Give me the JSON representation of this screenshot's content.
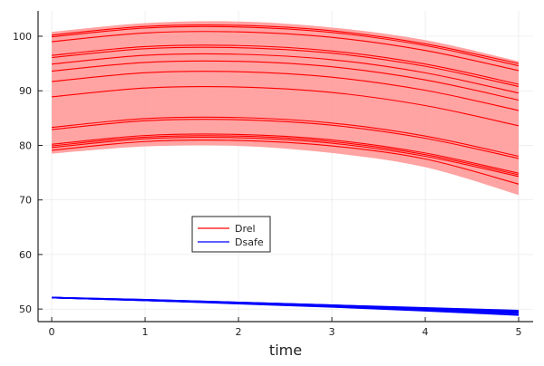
{
  "chart_data": {
    "type": "line",
    "title": "",
    "xlabel": "time",
    "ylabel": "",
    "xlim": [
      -0.146,
      5.155
    ],
    "ylim": [
      47.7,
      104.65
    ],
    "xticks": [
      0,
      1,
      2,
      3,
      4,
      5
    ],
    "yticks": [
      50,
      60,
      70,
      80,
      90,
      100
    ],
    "grid": true,
    "legend_position": "center-left",
    "x": [
      0,
      1,
      2,
      3,
      4,
      5
    ],
    "ribbon": {
      "color": "#ff9999",
      "lower": [
        78.5,
        79.8,
        79.9,
        78.6,
        76.0,
        70.9
      ],
      "upper": [
        100.8,
        102.4,
        102.7,
        101.6,
        99.3,
        95.4
      ]
    },
    "series": [
      {
        "name": "Drel",
        "color": "#ff0000",
        "lines": [
          [
            100.2,
            101.8,
            102.0,
            101.0,
            98.6,
            95.0
          ],
          [
            99.9,
            101.5,
            101.7,
            100.7,
            98.3,
            94.6
          ],
          [
            99.0,
            100.6,
            100.8,
            99.8,
            97.4,
            93.7
          ],
          [
            96.5,
            98.1,
            98.3,
            97.3,
            94.9,
            91.2
          ],
          [
            96.1,
            97.7,
            97.9,
            96.9,
            94.5,
            90.8
          ],
          [
            94.9,
            96.5,
            96.7,
            95.7,
            93.3,
            89.6
          ],
          [
            93.6,
            95.2,
            95.4,
            94.4,
            92.0,
            88.3
          ],
          [
            91.7,
            93.3,
            93.5,
            92.5,
            90.1,
            86.4
          ],
          [
            88.9,
            90.5,
            90.7,
            89.7,
            87.3,
            83.6
          ],
          [
            83.3,
            84.9,
            85.1,
            84.1,
            81.7,
            78.0
          ],
          [
            82.9,
            84.5,
            84.7,
            83.7,
            81.3,
            77.6
          ],
          [
            80.2,
            81.8,
            82.0,
            81.0,
            78.6,
            74.9
          ],
          [
            79.9,
            81.5,
            81.7,
            80.7,
            78.3,
            74.6
          ],
          [
            79.6,
            81.2,
            81.4,
            80.4,
            78.0,
            74.3
          ],
          [
            79.1,
            80.7,
            80.9,
            79.9,
            77.5,
            72.9
          ]
        ]
      },
      {
        "name": "Dsafe",
        "color": "#0000ff",
        "lines": [
          [
            52.1,
            51.6,
            51.1,
            50.5,
            49.9,
            49.2
          ],
          [
            52.1,
            51.6,
            51.1,
            50.6,
            50.0,
            49.4
          ],
          [
            52.1,
            51.7,
            51.2,
            50.7,
            50.1,
            49.5
          ],
          [
            52.1,
            51.7,
            51.2,
            50.7,
            50.2,
            49.7
          ],
          [
            52.1,
            51.6,
            51.0,
            50.4,
            49.7,
            48.9
          ]
        ]
      }
    ]
  }
}
